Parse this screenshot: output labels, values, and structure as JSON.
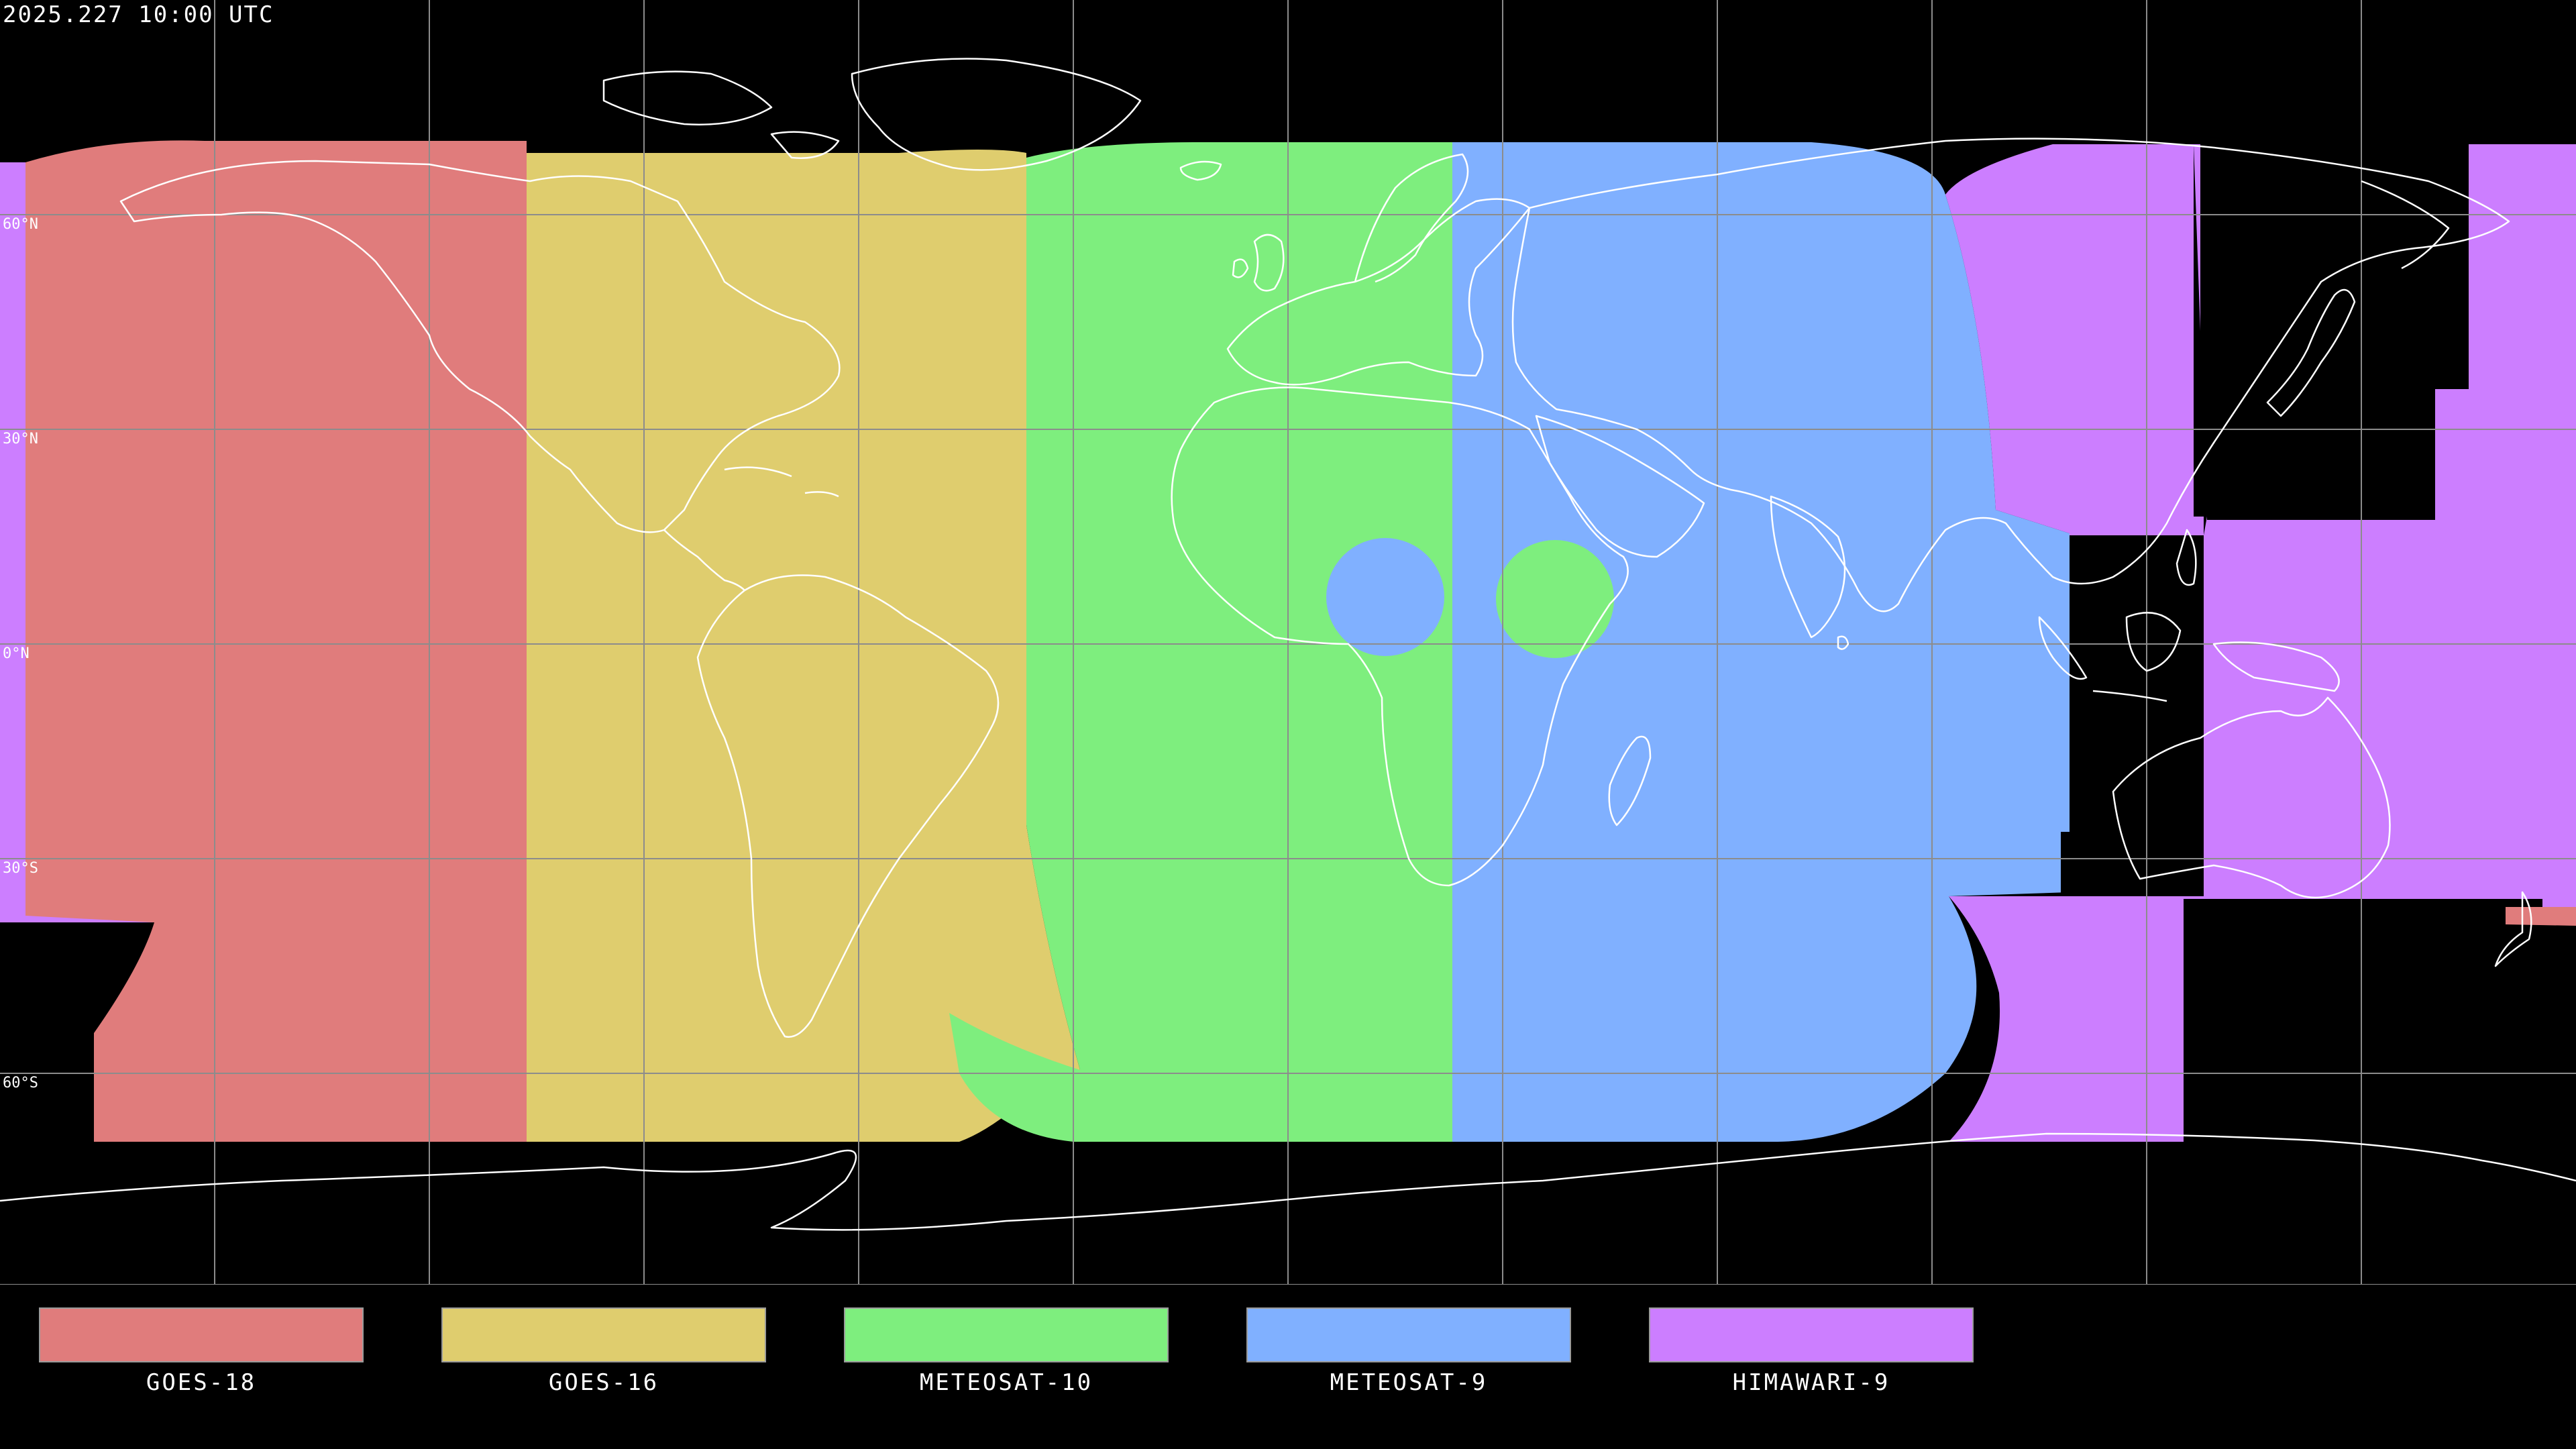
{
  "timestamp": "2025.227 10:00 UTC",
  "latitude_labels": [
    "60°N",
    "30°N",
    "0°N",
    "30°S",
    "60°S"
  ],
  "legend": [
    {
      "name": "GOES-18",
      "color": "#e07c7c"
    },
    {
      "name": "GOES-16",
      "color": "#dfcd6e"
    },
    {
      "name": "METEOSAT-10",
      "color": "#7eee7e"
    },
    {
      "name": "METEOSAT-9",
      "color": "#80b0ff"
    },
    {
      "name": "HIMAWARI-9",
      "color": "#cc7eff"
    }
  ],
  "colors": {
    "background": "#000000",
    "grid": "#8c8c8c",
    "coastline": "#ffffff"
  }
}
